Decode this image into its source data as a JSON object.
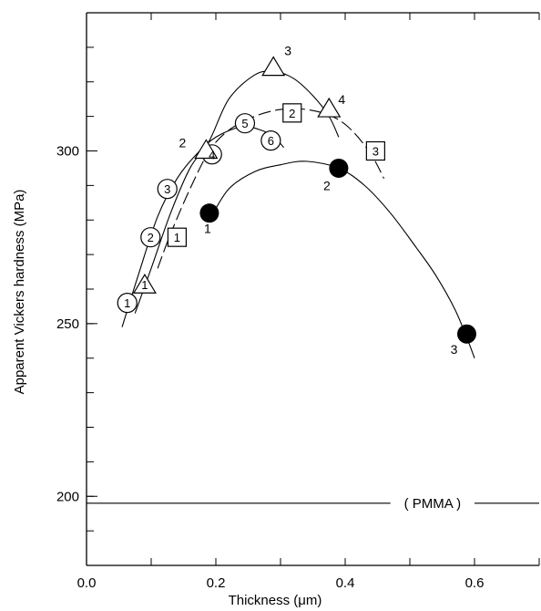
{
  "chart_data": {
    "type": "scatter",
    "xlabel": "Thickness (μm)",
    "ylabel": "Apparent Vickers hardness (MPa)",
    "xlim": [
      0.0,
      0.7
    ],
    "ylim": [
      180,
      340
    ],
    "x_ticks": [
      {
        "value": 0.0,
        "label": "0.0"
      },
      {
        "value": 0.2,
        "label": "0.2"
      },
      {
        "value": 0.4,
        "label": "0.4"
      },
      {
        "value": 0.6,
        "label": "0.6"
      }
    ],
    "y_ticks": [
      {
        "value": 200,
        "label": "200"
      },
      {
        "value": 250,
        "label": "250"
      },
      {
        "value": 300,
        "label": "300"
      }
    ],
    "x_minor_step": 0.1,
    "y_minor_step": 10,
    "grid": false,
    "reference_line": {
      "y": 198,
      "label": "( PMMA )"
    },
    "series": [
      {
        "marker": "circle-numbered",
        "line": "solid",
        "points": [
          {
            "x": 0.063,
            "y": 256,
            "label": "1"
          },
          {
            "x": 0.099,
            "y": 275,
            "label": "2"
          },
          {
            "x": 0.125,
            "y": 289,
            "label": "3"
          },
          {
            "x": 0.194,
            "y": 299,
            "label": "4"
          },
          {
            "x": 0.245,
            "y": 308,
            "label": "5"
          },
          {
            "x": 0.285,
            "y": 303,
            "label": "6"
          }
        ],
        "curve": [
          [
            0.055,
            249
          ],
          [
            0.08,
            264
          ],
          [
            0.11,
            281
          ],
          [
            0.14,
            292
          ],
          [
            0.17,
            299
          ],
          [
            0.2,
            304
          ],
          [
            0.24,
            307
          ],
          [
            0.27,
            306
          ],
          [
            0.29,
            304
          ],
          [
            0.305,
            301
          ]
        ]
      },
      {
        "marker": "triangle",
        "line": "solid",
        "points": [
          {
            "x": 0.09,
            "y": 261,
            "label": "1"
          },
          {
            "x": 0.185,
            "y": 300,
            "label": "2"
          },
          {
            "x": 0.289,
            "y": 324,
            "label": "3"
          },
          {
            "x": 0.375,
            "y": 312,
            "label": "4"
          }
        ],
        "curve": [
          [
            0.075,
            253
          ],
          [
            0.1,
            266
          ],
          [
            0.13,
            282
          ],
          [
            0.16,
            295
          ],
          [
            0.19,
            303
          ],
          [
            0.22,
            315
          ],
          [
            0.26,
            322
          ],
          [
            0.29,
            323
          ],
          [
            0.32,
            321
          ],
          [
            0.35,
            316
          ],
          [
            0.375,
            310
          ],
          [
            0.39,
            304
          ]
        ]
      },
      {
        "marker": "square-numbered",
        "line": "dashed",
        "points": [
          {
            "x": 0.14,
            "y": 275,
            "label": "1"
          },
          {
            "x": 0.318,
            "y": 311,
            "label": "2"
          },
          {
            "x": 0.447,
            "y": 300,
            "label": "3"
          }
        ],
        "curve": [
          [
            0.11,
            266
          ],
          [
            0.13,
            276
          ],
          [
            0.16,
            289
          ],
          [
            0.19,
            300
          ],
          [
            0.22,
            306
          ],
          [
            0.26,
            310
          ],
          [
            0.3,
            312
          ],
          [
            0.34,
            312
          ],
          [
            0.38,
            310
          ],
          [
            0.41,
            306
          ],
          [
            0.44,
            299
          ],
          [
            0.46,
            292
          ]
        ]
      },
      {
        "marker": "filled-circle",
        "line": "solid",
        "points": [
          {
            "x": 0.19,
            "y": 282,
            "label": "1"
          },
          {
            "x": 0.39,
            "y": 295,
            "label": "2"
          },
          {
            "x": 0.588,
            "y": 247,
            "label": "3"
          }
        ],
        "curve": [
          [
            0.19,
            280
          ],
          [
            0.22,
            289
          ],
          [
            0.26,
            294
          ],
          [
            0.3,
            296
          ],
          [
            0.34,
            297
          ],
          [
            0.39,
            295
          ],
          [
            0.43,
            290
          ],
          [
            0.47,
            282
          ],
          [
            0.51,
            272
          ],
          [
            0.54,
            264
          ],
          [
            0.57,
            254
          ],
          [
            0.59,
            245
          ],
          [
            0.6,
            240
          ]
        ]
      }
    ]
  }
}
